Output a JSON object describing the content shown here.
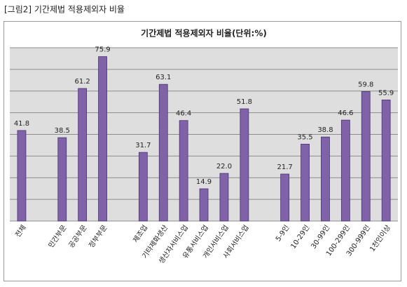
{
  "caption": "[그림2] 기간제법 적용제외자 비율",
  "chart_data": {
    "type": "bar",
    "title": "기간제법 적용제외자 비율(단위:%)",
    "categories": [
      "전체",
      null,
      "민간부문",
      "공공부문",
      "정부부문",
      null,
      "제조업",
      "기타제화생산",
      "생산자서비스업",
      "유통서비스업",
      "개인서비스업",
      "사회서비스업",
      null,
      "5-9인",
      "10-29인",
      "30-99인",
      "100-299인",
      "300-999인",
      "1천인이상"
    ],
    "values": [
      41.8,
      null,
      38.5,
      61.2,
      75.9,
      null,
      31.7,
      63.1,
      46.4,
      14.9,
      22.0,
      51.8,
      null,
      21.7,
      35.5,
      38.8,
      46.6,
      59.8,
      55.9
    ],
    "value_labels": [
      "41.8",
      null,
      "38.5",
      "61.2",
      "75.9",
      null,
      "31.7",
      "63.1",
      "46.4",
      "14.9",
      "22.0",
      "51.8",
      null,
      "21.7",
      "35.5",
      "38.8",
      "46.6",
      "59.8",
      "55.9"
    ],
    "color": "#7f62a8",
    "ylim": [
      0,
      80
    ],
    "yticks": [
      0,
      10,
      20,
      30,
      40,
      50,
      60,
      70,
      80
    ],
    "grid": true
  }
}
